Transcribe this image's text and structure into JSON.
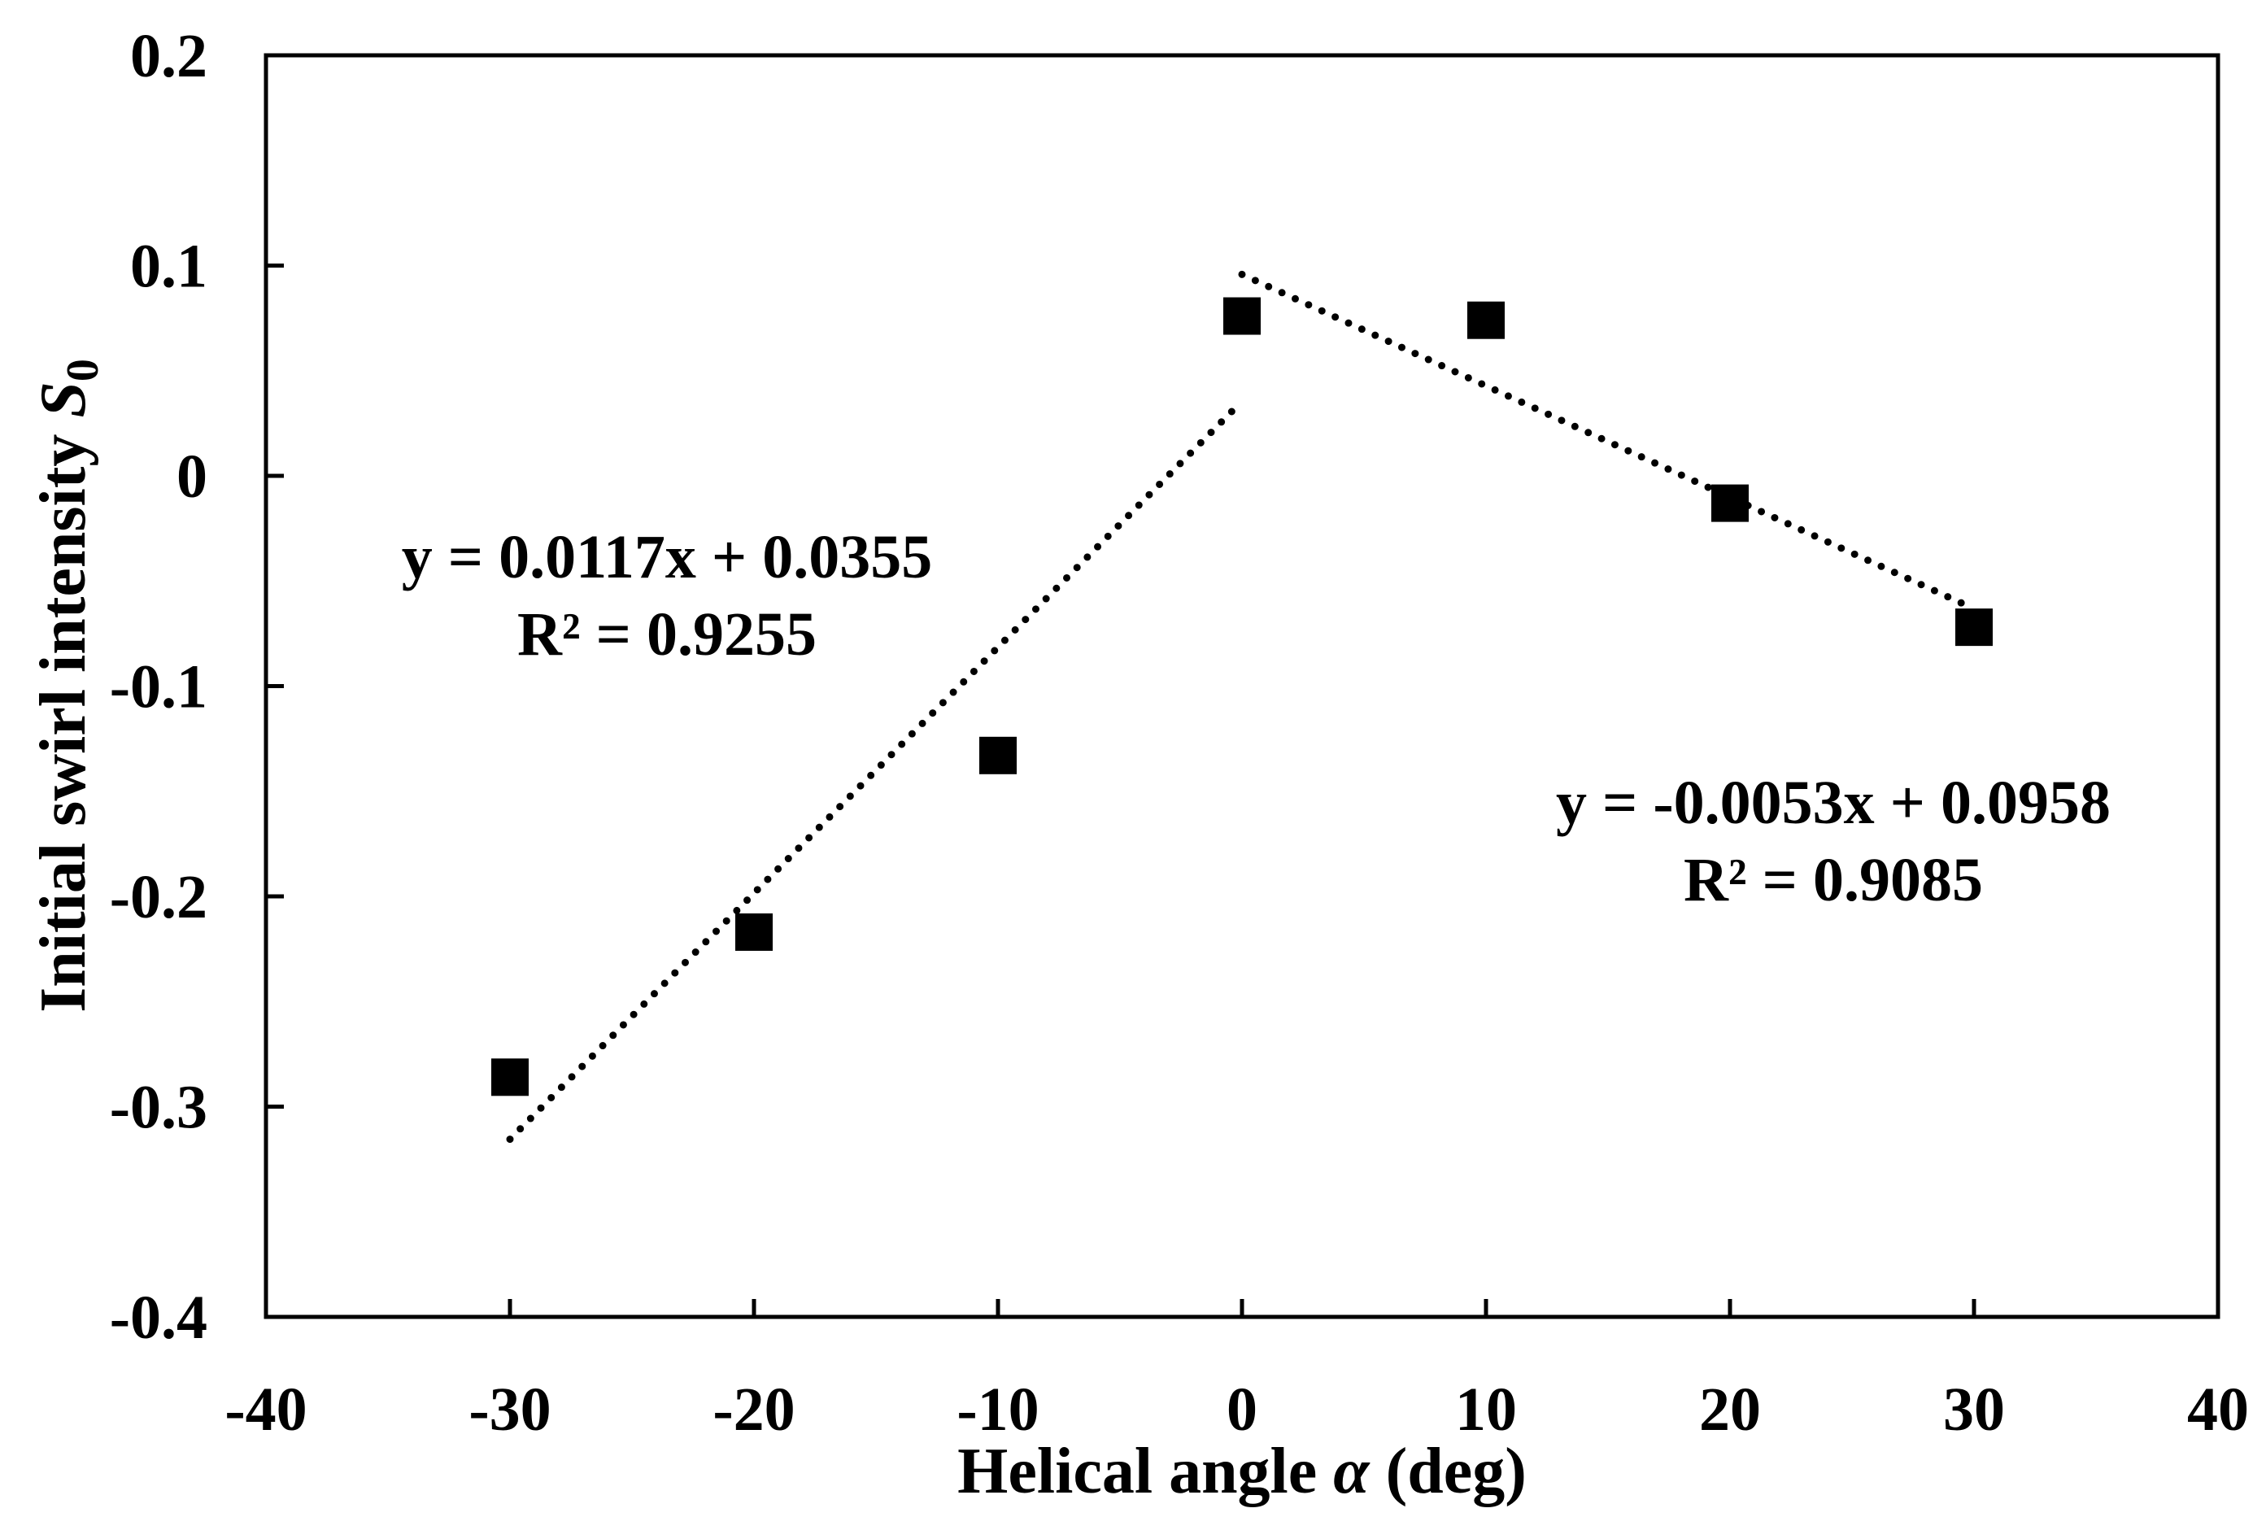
{
  "chart_data": {
    "type": "scatter",
    "title": "",
    "xlabel": {
      "main": "Helical angle ",
      "symbol": "α",
      "unit": " (deg)"
    },
    "ylabel": {
      "main": "Initial swirl intensity ",
      "symbol": "S",
      "subscript": "0"
    },
    "xlim": [
      -40,
      40
    ],
    "ylim": [
      -0.4,
      0.2
    ],
    "x_ticks": [
      -40,
      -30,
      -20,
      -10,
      0,
      10,
      20,
      30,
      40
    ],
    "x_tick_labels": [
      "-40",
      "-30",
      "-20",
      "-10",
      "0",
      "10",
      "20",
      "30",
      "40"
    ],
    "y_ticks": [
      -0.4,
      -0.3,
      -0.2,
      -0.1,
      0,
      0.1,
      0.2
    ],
    "y_tick_labels": [
      "-0.4",
      "-0.3",
      "-0.2",
      "-0.1",
      "0",
      "0.1",
      "0.2"
    ],
    "grid": false,
    "series": [
      {
        "name": "Initial swirl intensity",
        "marker": "square",
        "color": "#000000",
        "x": [
          -30,
          -20,
          -10,
          0,
          10,
          20,
          30
        ],
        "y": [
          -0.286,
          -0.217,
          -0.133,
          0.076,
          0.074,
          -0.013,
          -0.072
        ]
      }
    ],
    "trendlines": [
      {
        "name": "linear-fit-negative",
        "style": "dotted",
        "x_range": [
          -30,
          0
        ],
        "slope": 0.0117,
        "intercept": 0.0355,
        "equation": "y = 0.0117x + 0.0355",
        "r2": "R² = 0.9255"
      },
      {
        "name": "linear-fit-positive",
        "style": "dotted",
        "x_range": [
          0,
          30
        ],
        "slope": -0.0053,
        "intercept": 0.0958,
        "equation": "y = -0.0053x + 0.0958",
        "r2": "R² = 0.9085"
      }
    ]
  }
}
